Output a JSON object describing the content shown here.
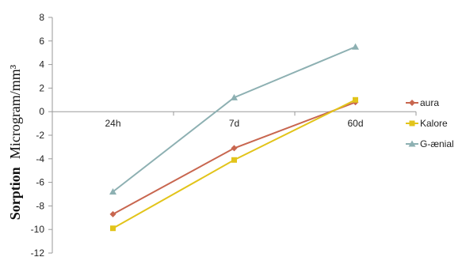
{
  "chart_data": {
    "type": "line",
    "title": "",
    "xlabel": "",
    "ylabel": "Sorption  Microgram/mm³",
    "ylabel_parts": {
      "bold": "Sorption",
      "rest": "Microgram/mm³"
    },
    "categories": [
      "24h",
      "7d",
      "60d"
    ],
    "ylim": [
      -12,
      8
    ],
    "yticks": [
      -12,
      -10,
      -8,
      -6,
      -4,
      -2,
      0,
      2,
      4,
      6,
      8
    ],
    "grid": false,
    "legend_position": "right",
    "series": [
      {
        "name": "aura",
        "values": [
          -8.7,
          -3.1,
          0.8
        ],
        "color": "#c8664f",
        "marker": "diamond"
      },
      {
        "name": "Kalore",
        "values": [
          -9.9,
          -4.1,
          1.0
        ],
        "color": "#e2c41a",
        "marker": "square"
      },
      {
        "name": "G-ænial",
        "values": [
          -6.8,
          1.2,
          5.5
        ],
        "color": "#8db0b2",
        "marker": "triangle"
      }
    ]
  }
}
